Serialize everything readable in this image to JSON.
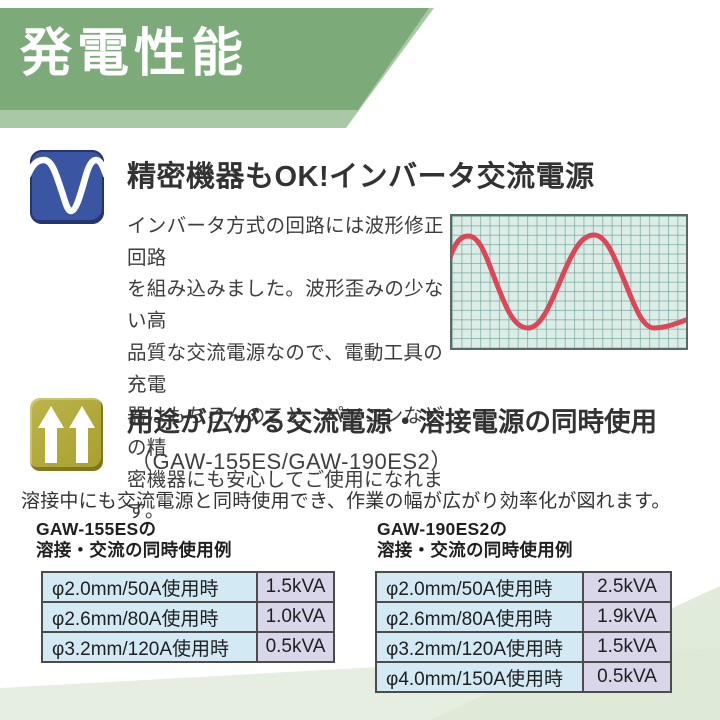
{
  "banner": {
    "title": "発電性能",
    "bg_color": "#7cab79",
    "accent_color": "#a9c9a6"
  },
  "section_inverter": {
    "heading": "精密機器もOK!インバータ交流電源",
    "body": "インバータ方式の回路には波形修正回路\nを組み込みました。波形歪みの少ない高\n品質な交流電源なので、電動工具の充電\n器はもちろんのこと、パソコンなどの精\n密機器にも安心してご使用になれます。",
    "icon": "sine-wave-icon",
    "icon_color": "#3a55a2",
    "waveform_figure": {
      "type": "line",
      "cycles": 2,
      "line_color": "#dc4656",
      "grid_bg": "#dcede7",
      "grid_line_color": "#78aaa0"
    }
  },
  "section_dual_use": {
    "heading": "用途が広がる交流電源・溶接電源の同時使用",
    "models": "（GAW-155ES/GAW-190ES2）",
    "intro": "溶接中にも交流電源と同時使用でき、作業の幅が広がり効率化が図れます。",
    "icon": "double-up-arrow-icon",
    "icon_color": "#b2a93c"
  },
  "tables": [
    {
      "title": "GAW-155ESの\n溶接・交流の同時使用例",
      "rows": [
        [
          "φ2.0mm/50A使用時",
          "1.5kVA"
        ],
        [
          "φ2.6mm/80A使用時",
          "1.0kVA"
        ],
        [
          "φ3.2mm/120A使用時",
          "0.5kVA"
        ]
      ]
    },
    {
      "title": "GAW-190ES2の\n溶接・交流の同時使用例",
      "rows": [
        [
          "φ2.0mm/50A使用時",
          "2.5kVA"
        ],
        [
          "φ2.6mm/80A使用時",
          "1.9kVA"
        ],
        [
          "φ3.2mm/120A使用時",
          "1.5kVA"
        ],
        [
          "φ4.0mm/150A使用時",
          "0.5kVA"
        ]
      ]
    }
  ],
  "table_colors": {
    "spec_cell_bg": "#d3e9f4",
    "value_cell_bg": "#d9d6e9",
    "border": "#4c4c4c"
  }
}
